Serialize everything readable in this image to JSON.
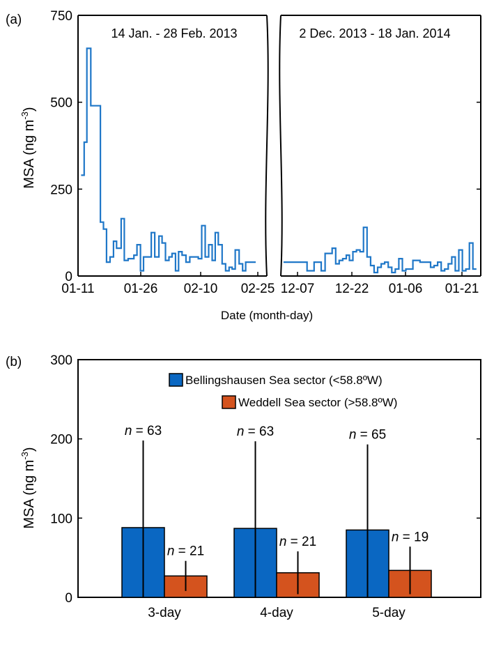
{
  "colors": {
    "series_line": "#1f77c8",
    "bellingshausen": "#0a67c2",
    "weddell": "#d4531e",
    "axes": "#000000"
  },
  "chart_data": [
    {
      "panel": "(a)",
      "type": "line",
      "style": "step",
      "ylabel_main": "MSA (ng m",
      "ylabel_exp": "-3",
      "ylabel_close": ")",
      "xlabel": "Date (month-day)",
      "ylim": [
        0,
        750
      ],
      "yticks": [
        "0",
        "250",
        "500",
        "750"
      ],
      "segments": [
        {
          "label": "14 Jan. - 28 Feb. 2013",
          "xticks": [
            "01-11",
            "01-26",
            "02-10",
            "02-25"
          ],
          "xlim": [
            0,
            49
          ],
          "x": [
            0.8,
            1.6,
            2.3,
            3.3,
            4.3,
            5.1,
            5.8,
            6.6,
            7.4,
            8.3,
            9.2,
            10,
            11.2,
            12,
            13,
            14.5,
            15.3,
            16.2,
            17,
            18,
            19,
            19.9,
            21,
            21.8,
            22.7,
            23.6,
            24.4,
            25.3,
            26.1,
            27,
            28,
            29,
            30.2,
            31.2,
            32.1,
            33,
            33.9,
            34.8,
            35.6,
            36.4,
            37.4,
            38.3,
            39.2,
            40,
            40.8,
            41.8,
            42.7,
            43.5,
            44.4,
            45.2
          ],
          "y": [
            290,
            385,
            655,
            490,
            490,
            490,
            155,
            135,
            40,
            55,
            100,
            80,
            165,
            45,
            50,
            60,
            90,
            15,
            55,
            55,
            125,
            55,
            115,
            95,
            45,
            55,
            65,
            15,
            70,
            60,
            40,
            55,
            55,
            50,
            145,
            55,
            90,
            45,
            125,
            90,
            35,
            15,
            25,
            20,
            75,
            35,
            15,
            40,
            40,
            40
          ]
        },
        {
          "label": "2 Dec. 2013 - 18 Jan. 2014",
          "xticks": [
            "12-07",
            "12-22",
            "01-06",
            "01-21"
          ],
          "xlim": [
            0,
            51
          ],
          "x": [
            0.7,
            2,
            3.5,
            5,
            6.7,
            7.6,
            8.5,
            9.4,
            10.3,
            11.3,
            12.2,
            13.1,
            14,
            14.9,
            15.8,
            16.7,
            17.5,
            18.4,
            19.3,
            20.2,
            21.1,
            22,
            22.9,
            23.8,
            24.7,
            25.6,
            26.5,
            27.4,
            28.3,
            29.2,
            30.1,
            31,
            31.9,
            32.8,
            33.7,
            34.6,
            35.5,
            36.4,
            37.3,
            38.2,
            39.1,
            40,
            40.9,
            41.8,
            42.7,
            43.6,
            44.5,
            45.4,
            46.3,
            47.2,
            48.1,
            49
          ],
          "y": [
            40,
            40,
            40,
            40,
            15,
            15,
            40,
            40,
            15,
            65,
            65,
            80,
            35,
            45,
            50,
            60,
            45,
            70,
            75,
            70,
            140,
            55,
            30,
            10,
            25,
            35,
            40,
            25,
            10,
            20,
            50,
            15,
            20,
            20,
            45,
            45,
            40,
            40,
            40,
            25,
            30,
            40,
            15,
            20,
            35,
            55,
            15,
            75,
            15,
            20,
            95,
            20
          ]
        }
      ]
    },
    {
      "panel": "(b)",
      "type": "bar",
      "ylabel_main": "MSA (ng m",
      "ylabel_exp": "-3",
      "ylabel_close": ")",
      "ylim": [
        0,
        300
      ],
      "yticks": [
        "0",
        "100",
        "200",
        "300"
      ],
      "categories": [
        "3-day",
        "4-day",
        "5-day"
      ],
      "legend_position": "top-right",
      "series": [
        {
          "name": "Bellingshausen Sea sector (<58.8ºW)",
          "values": [
            88,
            87,
            85
          ],
          "error": [
            110,
            110,
            108
          ],
          "n_labels": [
            "= 63",
            "= 63",
            "= 65"
          ]
        },
        {
          "name": "Weddell Sea sector (>58.8ºW)",
          "values": [
            27,
            31,
            34
          ],
          "error": [
            19,
            27,
            30
          ],
          "n_labels": [
            "= 21",
            "= 21",
            "= 19"
          ]
        }
      ],
      "n_symbol": "n"
    }
  ]
}
